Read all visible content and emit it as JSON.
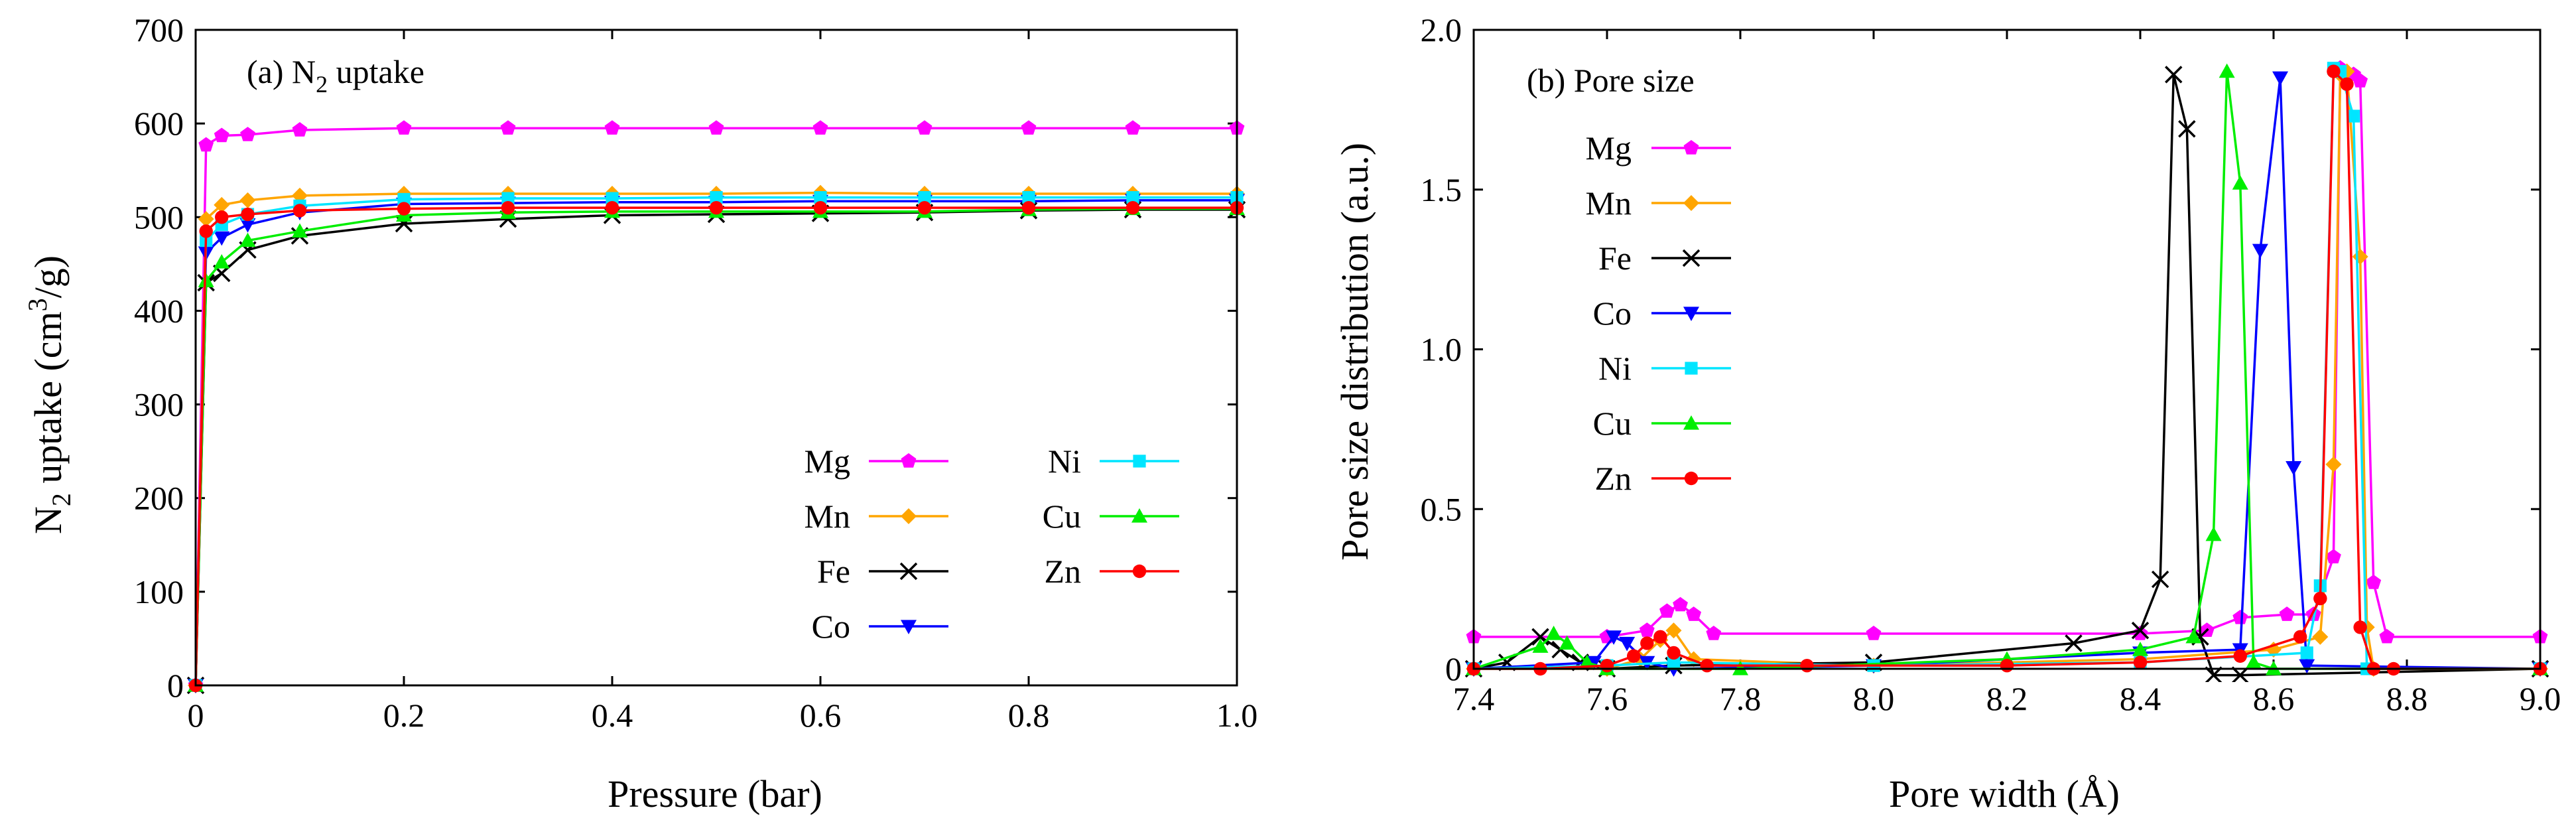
{
  "chart_data": [
    {
      "type": "line",
      "title": "(a) N₂ uptake",
      "title_main": "(a) N",
      "title_sub": "2",
      "title_tail": " uptake",
      "xlabel": "Pressure (bar)",
      "ylabel_main": "N",
      "ylabel_sub": "2",
      "ylabel_mid": " uptake (cm",
      "ylabel_sup": "3",
      "ylabel_tail": "/g)",
      "xlim": [
        0,
        1.0
      ],
      "ylim": [
        0,
        700
      ],
      "xticks": [
        "0",
        "0.2",
        "0.4",
        "0.6",
        "0.8",
        "1.0"
      ],
      "yticks": [
        "0",
        "100",
        "200",
        "300",
        "400",
        "500",
        "600",
        "700"
      ],
      "legend_position": "bottom-right",
      "x": [
        0,
        0.01,
        0.025,
        0.05,
        0.1,
        0.2,
        0.3,
        0.4,
        0.5,
        0.6,
        0.7,
        0.8,
        0.9,
        1.0
      ],
      "series": [
        {
          "name": "Mg",
          "color": "#ff00ff",
          "marker": "pentagon",
          "values": [
            0,
            577,
            587,
            588,
            593,
            595,
            595,
            595,
            595,
            595,
            595,
            595,
            595,
            595
          ]
        },
        {
          "name": "Mn",
          "color": "#ffa500",
          "marker": "diamond",
          "values": [
            0,
            498,
            513,
            518,
            523,
            525,
            525,
            525,
            525,
            526,
            525,
            525,
            525,
            525
          ]
        },
        {
          "name": "Fe",
          "color": "#000000",
          "marker": "cross",
          "values": [
            0,
            430,
            440,
            465,
            480,
            493,
            498,
            502,
            503,
            504,
            505,
            507,
            508,
            508
          ]
        },
        {
          "name": "Co",
          "color": "#0000ff",
          "marker": "triangle-down",
          "values": [
            0,
            462,
            478,
            492,
            505,
            514,
            515,
            516,
            516,
            517,
            517,
            517,
            518,
            518
          ]
        },
        {
          "name": "Ni",
          "color": "#00e5ff",
          "marker": "square",
          "values": [
            0,
            475,
            492,
            503,
            512,
            519,
            520,
            520,
            521,
            521,
            521,
            521,
            521,
            521
          ]
        },
        {
          "name": "Cu",
          "color": "#00ee00",
          "marker": "triangle-up",
          "values": [
            0,
            432,
            452,
            475,
            485,
            502,
            505,
            506,
            506,
            506,
            506,
            508,
            509,
            509
          ]
        },
        {
          "name": "Zn",
          "color": "#ff0000",
          "marker": "circle",
          "values": [
            0,
            485,
            500,
            503,
            507,
            509,
            510,
            510,
            510,
            510,
            510,
            510,
            510,
            510
          ]
        }
      ]
    },
    {
      "type": "line",
      "title": "(b) Pore size",
      "xlabel": "Pore width (Å)",
      "ylabel": "Pore size distribution (a.u.)",
      "xlim": [
        7.4,
        9.0
      ],
      "ylim": [
        0,
        2.0
      ],
      "xticks": [
        "7.4",
        "7.6",
        "7.8",
        "8.0",
        "8.2",
        "8.4",
        "8.6",
        "8.8",
        "9.0"
      ],
      "yticks": [
        "0",
        "0.5",
        "1.0",
        "1.5",
        "2.0"
      ],
      "legend_position": "top-left",
      "series": [
        {
          "name": "Mg",
          "color": "#ff00ff",
          "marker": "pentagon",
          "x": [
            7.4,
            7.6,
            7.66,
            7.69,
            7.71,
            7.73,
            7.76,
            8.0,
            8.4,
            8.5,
            8.55,
            8.62,
            8.66,
            8.69,
            8.7,
            8.72,
            8.73,
            8.75,
            8.77,
            9.0
          ],
          "y": [
            0.1,
            0.1,
            0.12,
            0.18,
            0.2,
            0.17,
            0.11,
            0.11,
            0.11,
            0.12,
            0.16,
            0.17,
            0.17,
            0.35,
            1.88,
            1.86,
            1.84,
            0.27,
            0.1,
            0.1
          ]
        },
        {
          "name": "Mn",
          "color": "#ffa500",
          "marker": "diamond",
          "x": [
            7.4,
            7.6,
            7.65,
            7.68,
            7.7,
            7.73,
            8.0,
            8.4,
            8.6,
            8.67,
            8.69,
            8.7,
            8.71,
            8.73,
            8.74,
            8.75,
            9.0
          ],
          "y": [
            0.0,
            0.0,
            0.03,
            0.09,
            0.12,
            0.03,
            0.01,
            0.03,
            0.06,
            0.1,
            0.64,
            1.86,
            1.87,
            1.29,
            0.13,
            0.0,
            0.0
          ]
        },
        {
          "name": "Fe",
          "color": "#000000",
          "marker": "cross",
          "x": [
            7.4,
            7.45,
            7.5,
            7.53,
            7.56,
            7.6,
            7.7,
            8.0,
            8.3,
            8.4,
            8.43,
            8.45,
            8.47,
            8.49,
            8.51,
            8.55,
            9.0
          ],
          "y": [
            0.0,
            0.02,
            0.1,
            0.06,
            0.02,
            0.0,
            0.01,
            0.02,
            0.08,
            0.12,
            0.28,
            1.86,
            1.69,
            0.1,
            -0.02,
            -0.02,
            0.0
          ]
        },
        {
          "name": "Co",
          "color": "#0000ff",
          "marker": "triangle-down",
          "x": [
            7.4,
            7.58,
            7.61,
            7.63,
            7.66,
            7.7,
            8.0,
            8.4,
            8.55,
            8.58,
            8.61,
            8.63,
            8.65,
            9.0
          ],
          "y": [
            0.0,
            0.02,
            0.1,
            0.08,
            0.02,
            0.0,
            0.01,
            0.05,
            0.06,
            1.31,
            1.85,
            0.63,
            0.01,
            0.0
          ]
        },
        {
          "name": "Ni",
          "color": "#00e5ff",
          "marker": "square",
          "x": [
            7.4,
            7.6,
            7.7,
            8.0,
            8.4,
            8.65,
            8.67,
            8.69,
            8.7,
            8.72,
            8.74,
            9.0
          ],
          "y": [
            0.0,
            0.01,
            0.02,
            0.01,
            0.02,
            0.05,
            0.26,
            1.88,
            1.87,
            1.73,
            0.0,
            0.0
          ]
        },
        {
          "name": "Cu",
          "color": "#00ee00",
          "marker": "triangle-up",
          "x": [
            7.4,
            7.5,
            7.52,
            7.54,
            7.57,
            7.6,
            7.8,
            8.2,
            8.4,
            8.48,
            8.51,
            8.53,
            8.55,
            8.57,
            8.6,
            9.0
          ],
          "y": [
            0.0,
            0.07,
            0.11,
            0.08,
            0.02,
            0.0,
            0.0,
            0.03,
            0.06,
            0.1,
            0.42,
            1.87,
            1.52,
            0.02,
            0.0,
            0.0
          ]
        },
        {
          "name": "Zn",
          "color": "#ff0000",
          "marker": "circle",
          "x": [
            7.4,
            7.5,
            7.6,
            7.64,
            7.66,
            7.68,
            7.7,
            7.75,
            7.9,
            8.2,
            8.4,
            8.55,
            8.64,
            8.67,
            8.69,
            8.71,
            8.73,
            8.75,
            8.78,
            9.0
          ],
          "y": [
            0.0,
            0.0,
            0.01,
            0.04,
            0.08,
            0.1,
            0.05,
            0.01,
            0.01,
            0.01,
            0.02,
            0.04,
            0.1,
            0.22,
            1.87,
            1.83,
            0.13,
            0.0,
            0.0,
            0.0
          ]
        }
      ]
    }
  ]
}
